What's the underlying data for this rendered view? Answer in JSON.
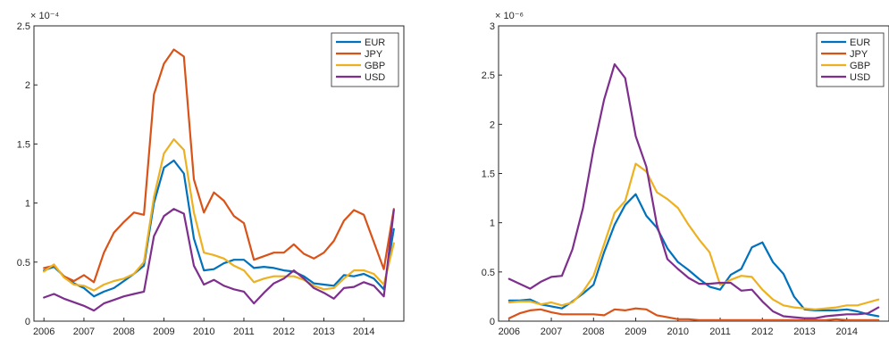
{
  "chart_data": [
    {
      "type": "line",
      "title": "",
      "xlabel": "",
      "ylabel": "",
      "y_multiplier": "× 10⁻⁴",
      "xlim": [
        2005.75,
        2015.0
      ],
      "ylim": [
        0,
        2.5
      ],
      "xticks": [
        2006,
        2007,
        2008,
        2009,
        2010,
        2011,
        2012,
        2013,
        2014
      ],
      "xticklabels": [
        "2006",
        "2007",
        "2008",
        "2009",
        "2010",
        "2011",
        "2012",
        "2013",
        "2014"
      ],
      "yticks": [
        0,
        0.5,
        1,
        1.5,
        2,
        2.5
      ],
      "yticklabels": [
        "0",
        "0.5",
        "1",
        "1.5",
        "2",
        "2.5"
      ],
      "grid": false,
      "legend_position": "top-right",
      "x": [
        2006.0,
        2006.25,
        2006.5,
        2006.75,
        2007.0,
        2007.25,
        2007.5,
        2007.75,
        2008.0,
        2008.25,
        2008.5,
        2008.75,
        2009.0,
        2009.25,
        2009.5,
        2009.75,
        2010.0,
        2010.25,
        2010.5,
        2010.75,
        2011.0,
        2011.25,
        2011.5,
        2011.75,
        2012.0,
        2012.25,
        2012.5,
        2012.75,
        2013.0,
        2013.25,
        2013.5,
        2013.75,
        2014.0,
        2014.25,
        2014.5,
        2014.75
      ],
      "series": [
        {
          "name": "EUR",
          "color": "#0072BD",
          "values": [
            0.43,
            0.46,
            0.38,
            0.32,
            0.28,
            0.21,
            0.25,
            0.28,
            0.34,
            0.4,
            0.47,
            1.0,
            1.3,
            1.36,
            1.25,
            0.7,
            0.43,
            0.44,
            0.49,
            0.52,
            0.52,
            0.45,
            0.46,
            0.45,
            0.43,
            0.42,
            0.38,
            0.32,
            0.31,
            0.3,
            0.39,
            0.38,
            0.4,
            0.36,
            0.27,
            0.78
          ]
        },
        {
          "name": "JPY",
          "color": "#D95319",
          "values": [
            0.45,
            0.47,
            0.38,
            0.34,
            0.39,
            0.33,
            0.58,
            0.75,
            0.84,
            0.92,
            0.9,
            1.92,
            2.18,
            2.3,
            2.24,
            1.2,
            0.92,
            1.09,
            1.02,
            0.89,
            0.83,
            0.52,
            0.55,
            0.58,
            0.58,
            0.65,
            0.57,
            0.53,
            0.58,
            0.68,
            0.85,
            0.94,
            0.9,
            0.67,
            0.44,
            0.95
          ]
        },
        {
          "name": "GBP",
          "color": "#EDB120",
          "values": [
            0.42,
            0.48,
            0.37,
            0.31,
            0.3,
            0.26,
            0.31,
            0.34,
            0.36,
            0.4,
            0.5,
            1.05,
            1.42,
            1.54,
            1.45,
            0.92,
            0.58,
            0.56,
            0.53,
            0.47,
            0.43,
            0.33,
            0.36,
            0.38,
            0.38,
            0.38,
            0.35,
            0.3,
            0.27,
            0.28,
            0.36,
            0.43,
            0.43,
            0.4,
            0.31,
            0.66
          ]
        },
        {
          "name": "USD",
          "color": "#7E2F8E",
          "values": [
            0.2,
            0.23,
            0.19,
            0.16,
            0.13,
            0.09,
            0.15,
            0.18,
            0.21,
            0.23,
            0.25,
            0.72,
            0.89,
            0.95,
            0.91,
            0.47,
            0.31,
            0.35,
            0.3,
            0.27,
            0.25,
            0.15,
            0.24,
            0.32,
            0.36,
            0.43,
            0.36,
            0.28,
            0.24,
            0.19,
            0.28,
            0.29,
            0.33,
            0.3,
            0.21,
            0.94
          ]
        }
      ]
    },
    {
      "type": "line",
      "title": "",
      "xlabel": "",
      "ylabel": "",
      "y_multiplier": "× 10⁻⁶",
      "xlim": [
        2005.75,
        2015.0
      ],
      "ylim": [
        0,
        3
      ],
      "xticks": [
        2006,
        2007,
        2008,
        2009,
        2010,
        2011,
        2012,
        2013,
        2014
      ],
      "xticklabels": [
        "2006",
        "2007",
        "2008",
        "2009",
        "2010",
        "2011",
        "2012",
        "2013",
        "2014"
      ],
      "yticks": [
        0,
        0.5,
        1,
        1.5,
        2,
        2.5,
        3
      ],
      "yticklabels": [
        "0",
        "0.5",
        "1",
        "1.5",
        "2",
        "2.5",
        "3"
      ],
      "grid": false,
      "legend_position": "top-right",
      "x": [
        2006.0,
        2006.25,
        2006.5,
        2006.75,
        2007.0,
        2007.25,
        2007.5,
        2007.75,
        2008.0,
        2008.25,
        2008.5,
        2008.75,
        2009.0,
        2009.25,
        2009.5,
        2009.75,
        2010.0,
        2010.25,
        2010.5,
        2010.75,
        2011.0,
        2011.25,
        2011.5,
        2011.75,
        2012.0,
        2012.25,
        2012.5,
        2012.75,
        2013.0,
        2013.25,
        2013.5,
        2013.75,
        2014.0,
        2014.25,
        2014.5,
        2014.75
      ],
      "series": [
        {
          "name": "EUR",
          "color": "#0072BD",
          "values": [
            0.21,
            0.21,
            0.22,
            0.17,
            0.15,
            0.13,
            0.2,
            0.28,
            0.37,
            0.7,
            0.98,
            1.18,
            1.29,
            1.07,
            0.95,
            0.74,
            0.6,
            0.52,
            0.43,
            0.35,
            0.32,
            0.47,
            0.53,
            0.75,
            0.8,
            0.6,
            0.48,
            0.25,
            0.12,
            0.11,
            0.11,
            0.11,
            0.12,
            0.1,
            0.07,
            0.05
          ]
        },
        {
          "name": "JPY",
          "color": "#D95319",
          "values": [
            0.03,
            0.08,
            0.11,
            0.12,
            0.09,
            0.07,
            0.07,
            0.07,
            0.07,
            0.06,
            0.12,
            0.11,
            0.13,
            0.12,
            0.06,
            0.04,
            0.02,
            0.02,
            0.01,
            0.01,
            0.01,
            0.01,
            0.01,
            0.01,
            0.01,
            0.01,
            0.01,
            0.01,
            0.01,
            0.01,
            0.01,
            0.02,
            0.01,
            0.01,
            0.01,
            0.01
          ]
        },
        {
          "name": "GBP",
          "color": "#EDB120",
          "values": [
            0.19,
            0.2,
            0.2,
            0.17,
            0.19,
            0.16,
            0.19,
            0.3,
            0.46,
            0.78,
            1.1,
            1.22,
            1.6,
            1.52,
            1.31,
            1.24,
            1.15,
            0.98,
            0.83,
            0.7,
            0.37,
            0.42,
            0.46,
            0.45,
            0.32,
            0.22,
            0.16,
            0.14,
            0.13,
            0.12,
            0.13,
            0.14,
            0.16,
            0.16,
            0.19,
            0.22
          ]
        },
        {
          "name": "USD",
          "color": "#7E2F8E",
          "values": [
            0.43,
            0.38,
            0.33,
            0.4,
            0.45,
            0.46,
            0.73,
            1.15,
            1.75,
            2.25,
            2.61,
            2.47,
            1.88,
            1.57,
            0.98,
            0.63,
            0.53,
            0.44,
            0.38,
            0.38,
            0.39,
            0.39,
            0.31,
            0.32,
            0.2,
            0.1,
            0.05,
            0.04,
            0.03,
            0.03,
            0.05,
            0.06,
            0.07,
            0.07,
            0.08,
            0.14
          ]
        }
      ]
    }
  ]
}
